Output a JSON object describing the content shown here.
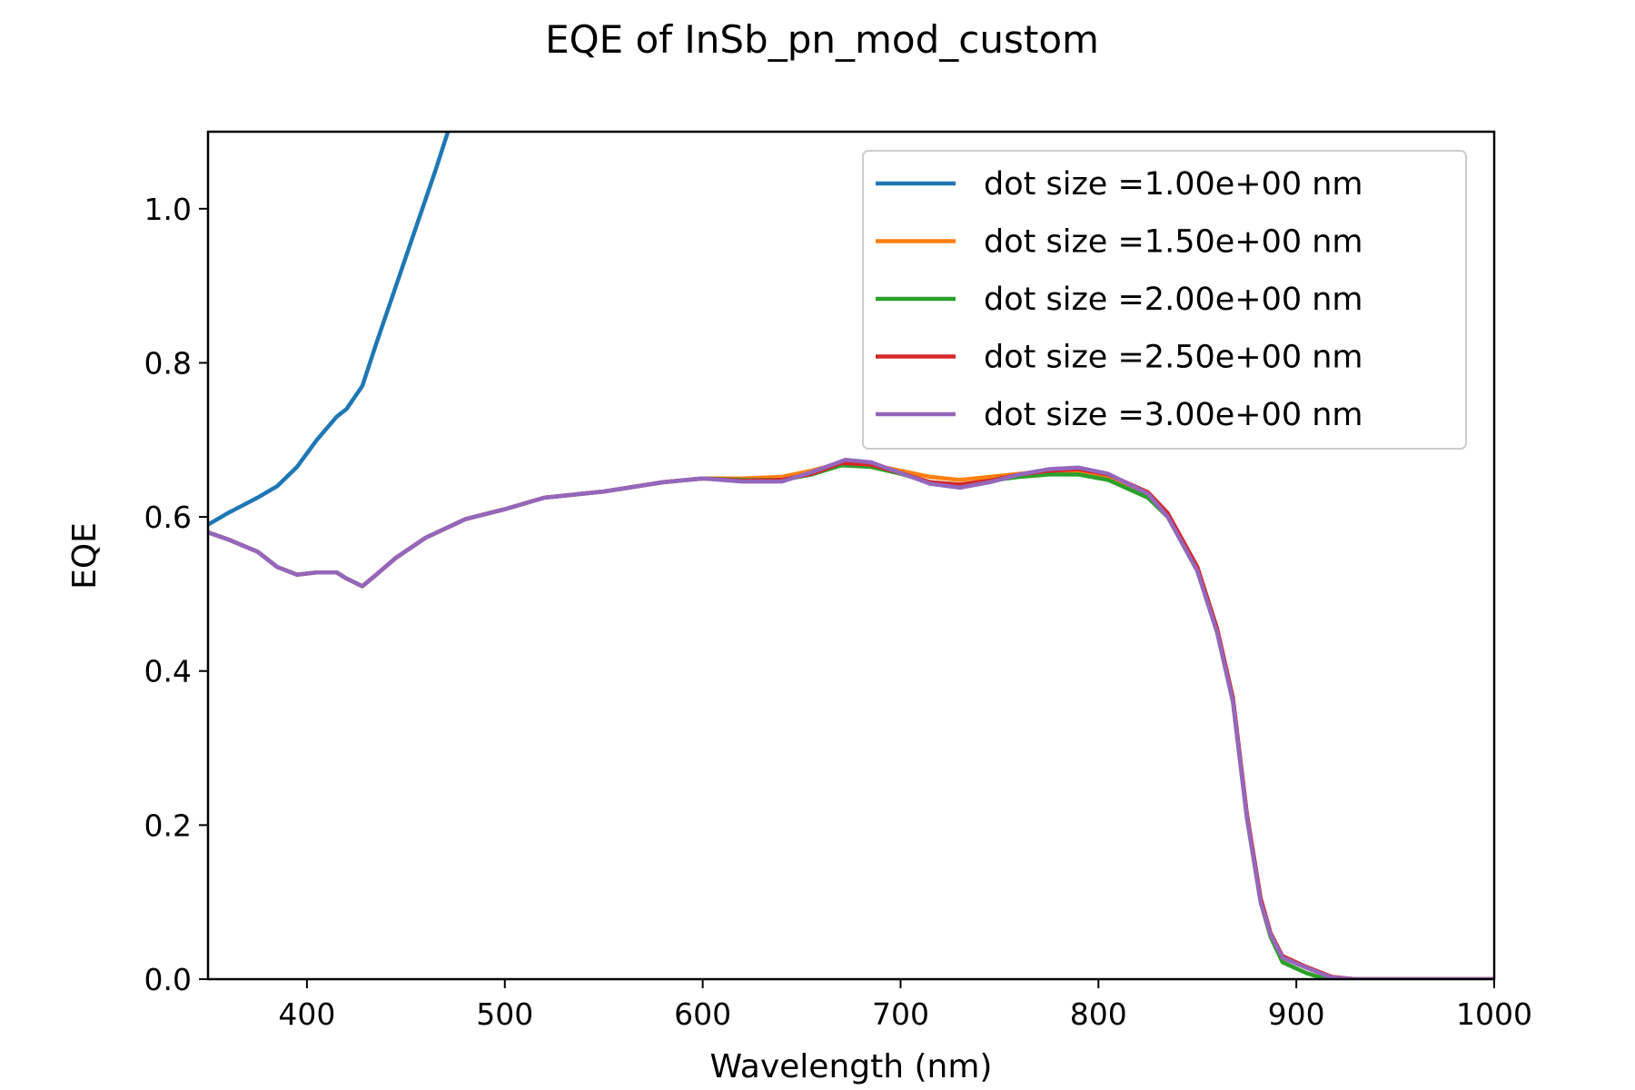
{
  "chart_data": {
    "type": "line",
    "title": "EQE of  InSb_pn_mod_custom",
    "xlabel": "Wavelength (nm)",
    "ylabel": "EQE",
    "xlim": [
      350,
      1000
    ],
    "ylim": [
      0,
      1.1
    ],
    "xticks": [
      400,
      500,
      600,
      700,
      800,
      900,
      1000
    ],
    "yticks": [
      0.0,
      0.2,
      0.4,
      0.6,
      0.8,
      1.0
    ],
    "xtick_labels": [
      "400",
      "500",
      "600",
      "700",
      "800",
      "900",
      "1000"
    ],
    "ytick_labels": [
      "0.0",
      "0.2",
      "0.4",
      "0.6",
      "0.8",
      "1.0"
    ],
    "grid": false,
    "legend_position": "top-right",
    "series": [
      {
        "name": "dot size =1.00e+00 nm",
        "color": "#1f77b4",
        "x": [
          350,
          360,
          375,
          385,
          395,
          405,
          415,
          420,
          428,
          435,
          445,
          455,
          465,
          475
        ],
        "y": [
          0.59,
          0.605,
          0.625,
          0.64,
          0.665,
          0.7,
          0.73,
          0.74,
          0.77,
          0.825,
          0.9,
          0.975,
          1.05,
          1.13
        ]
      },
      {
        "name": "dot size =1.50e+00 nm",
        "color": "#ff7f0e",
        "x": [
          350,
          360,
          375,
          385,
          395,
          405,
          415,
          420,
          428,
          435,
          445,
          460,
          480,
          500,
          520,
          550,
          580,
          600,
          620,
          640,
          655,
          670,
          685,
          700,
          715,
          730,
          745,
          760,
          775,
          790,
          805,
          825,
          835,
          850,
          860,
          868,
          875,
          882,
          887,
          893,
          905,
          918,
          930,
          1000
        ],
        "y": [
          0.58,
          0.571,
          0.555,
          0.535,
          0.525,
          0.528,
          0.528,
          0.52,
          0.51,
          0.525,
          0.547,
          0.573,
          0.597,
          0.61,
          0.625,
          0.633,
          0.645,
          0.65,
          0.65,
          0.652,
          0.66,
          0.67,
          0.668,
          0.66,
          0.652,
          0.648,
          0.652,
          0.656,
          0.66,
          0.66,
          0.652,
          0.63,
          0.6,
          0.53,
          0.45,
          0.36,
          0.21,
          0.1,
          0.055,
          0.028,
          0.015,
          0.002,
          0.0,
          0.0
        ]
      },
      {
        "name": "dot size =2.00e+00 nm",
        "color": "#2ca02c",
        "x": [
          350,
          360,
          375,
          385,
          395,
          405,
          415,
          420,
          428,
          435,
          445,
          460,
          480,
          500,
          520,
          550,
          580,
          600,
          620,
          640,
          655,
          670,
          685,
          700,
          715,
          730,
          745,
          760,
          775,
          790,
          805,
          825,
          835,
          850,
          860,
          868,
          875,
          882,
          887,
          893,
          905,
          915,
          1000
        ],
        "y": [
          0.58,
          0.571,
          0.555,
          0.535,
          0.525,
          0.528,
          0.528,
          0.52,
          0.51,
          0.525,
          0.547,
          0.573,
          0.597,
          0.61,
          0.625,
          0.633,
          0.645,
          0.65,
          0.648,
          0.648,
          0.655,
          0.667,
          0.665,
          0.656,
          0.645,
          0.642,
          0.647,
          0.652,
          0.655,
          0.655,
          0.648,
          0.625,
          0.6,
          0.53,
          0.45,
          0.36,
          0.21,
          0.1,
          0.055,
          0.022,
          0.008,
          0.0,
          0.0
        ]
      },
      {
        "name": "dot size =2.50e+00 nm",
        "color": "#d62728",
        "x": [
          350,
          360,
          375,
          385,
          395,
          405,
          415,
          420,
          428,
          435,
          445,
          460,
          480,
          500,
          520,
          550,
          580,
          600,
          620,
          640,
          655,
          670,
          685,
          700,
          715,
          730,
          745,
          760,
          775,
          790,
          805,
          825,
          835,
          850,
          860,
          868,
          875,
          882,
          887,
          893,
          905,
          918,
          930,
          1000
        ],
        "y": [
          0.58,
          0.571,
          0.555,
          0.535,
          0.525,
          0.528,
          0.528,
          0.52,
          0.51,
          0.525,
          0.547,
          0.573,
          0.597,
          0.61,
          0.625,
          0.633,
          0.645,
          0.65,
          0.647,
          0.648,
          0.656,
          0.67,
          0.668,
          0.657,
          0.645,
          0.642,
          0.647,
          0.655,
          0.66,
          0.662,
          0.655,
          0.632,
          0.605,
          0.535,
          0.455,
          0.365,
          0.215,
          0.105,
          0.06,
          0.03,
          0.016,
          0.003,
          0.0,
          0.0
        ]
      },
      {
        "name": "dot size =3.00e+00 nm",
        "color": "#9467bd",
        "x": [
          350,
          360,
          375,
          385,
          395,
          405,
          415,
          420,
          428,
          435,
          445,
          460,
          480,
          500,
          520,
          550,
          580,
          600,
          620,
          640,
          655,
          672,
          685,
          700,
          715,
          730,
          745,
          760,
          775,
          790,
          805,
          825,
          835,
          850,
          860,
          868,
          875,
          882,
          887,
          893,
          905,
          918,
          930,
          1000
        ],
        "y": [
          0.58,
          0.571,
          0.555,
          0.535,
          0.525,
          0.528,
          0.528,
          0.52,
          0.51,
          0.525,
          0.547,
          0.573,
          0.597,
          0.61,
          0.625,
          0.633,
          0.645,
          0.65,
          0.646,
          0.646,
          0.658,
          0.674,
          0.671,
          0.657,
          0.643,
          0.638,
          0.645,
          0.655,
          0.662,
          0.664,
          0.656,
          0.63,
          0.6,
          0.53,
          0.45,
          0.36,
          0.21,
          0.1,
          0.058,
          0.028,
          0.015,
          0.002,
          0.0,
          0.0
        ]
      }
    ]
  }
}
